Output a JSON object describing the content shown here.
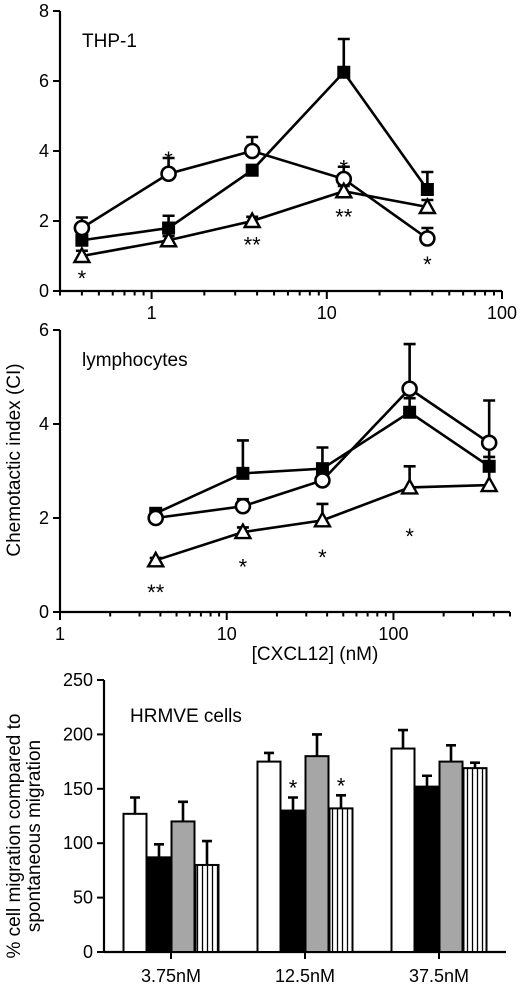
{
  "chart_data": [
    {
      "type": "line",
      "panel_label": "THP-1",
      "xscale": "log",
      "xlim": [
        0.3,
        100
      ],
      "ylim": [
        0,
        8
      ],
      "xticks": [
        "1",
        "10",
        "100"
      ],
      "yticks": [
        "0",
        "2",
        "4",
        "6",
        "8"
      ],
      "series": [
        {
          "marker": "square-filled",
          "x": [
            0.4,
            1.25,
            3.75,
            12.5,
            37.5
          ],
          "y": [
            1.45,
            1.8,
            3.45,
            6.25,
            2.9
          ],
          "err": [
            0.25,
            0.35,
            0.15,
            0.95,
            0.5
          ]
        },
        {
          "marker": "circle-open",
          "x": [
            0.4,
            1.25,
            3.75,
            12.5,
            37.5
          ],
          "y": [
            1.8,
            3.35,
            4.0,
            3.2,
            1.5
          ],
          "err": [
            0.3,
            0.45,
            0.4,
            0.35,
            0.3
          ]
        },
        {
          "marker": "triangle-open",
          "x": [
            0.4,
            1.25,
            3.75,
            12.5,
            37.5
          ],
          "y": [
            1.0,
            1.45,
            2.0,
            2.85,
            2.4
          ],
          "err": [
            0.15,
            0.12,
            0.12,
            0.15,
            0.2
          ]
        }
      ],
      "annotations": [
        {
          "text": "*",
          "x": 0.4,
          "y": 0.55
        },
        {
          "text": "*",
          "x": 1.25,
          "y": 3.95
        },
        {
          "text": "**",
          "x": 3.75,
          "y": 1.5
        },
        {
          "text": "*",
          "x": 12.5,
          "y": 3.7
        },
        {
          "text": "**",
          "x": 12.5,
          "y": 2.3
        },
        {
          "text": "*",
          "x": 37.5,
          "y": 0.95
        }
      ]
    },
    {
      "type": "line",
      "panel_label": "lymphocytes",
      "xscale": "log",
      "xlim": [
        1,
        500
      ],
      "ylim": [
        0,
        6
      ],
      "xticks": [
        "1",
        "10",
        "100"
      ],
      "yticks": [
        "0",
        "2",
        "4",
        "6"
      ],
      "series": [
        {
          "marker": "square-filled",
          "x": [
            3.75,
            12.5,
            37.5,
            125,
            375
          ],
          "y": [
            2.1,
            2.95,
            3.05,
            4.25,
            3.1
          ],
          "err": [
            0.1,
            0.7,
            0.45,
            0.3,
            0.6
          ]
        },
        {
          "marker": "circle-open",
          "x": [
            3.75,
            12.5,
            37.5,
            125,
            375
          ],
          "y": [
            2.0,
            2.25,
            2.8,
            4.75,
            3.6
          ],
          "err": [
            0.1,
            0.15,
            0.2,
            0.95,
            0.9
          ]
        },
        {
          "marker": "triangle-open",
          "x": [
            3.75,
            12.5,
            37.5,
            125,
            375
          ],
          "y": [
            1.1,
            1.7,
            1.95,
            2.65,
            2.7
          ],
          "err": [
            0.05,
            0.1,
            0.35,
            0.45,
            0.6
          ]
        }
      ],
      "annotations": [
        {
          "text": "**",
          "x": 3.75,
          "y": 0.55
        },
        {
          "text": "*",
          "x": 12.5,
          "y": 1.1
        },
        {
          "text": "*",
          "x": 37.5,
          "y": 1.3
        },
        {
          "text": "*",
          "x": 125,
          "y": 1.75
        }
      ],
      "xlabel": "[CXCL12] (nM)"
    },
    {
      "type": "bar",
      "panel_label": "HRMVE cells",
      "ylim": [
        0,
        250
      ],
      "yticks": [
        "0",
        "50",
        "100",
        "150",
        "200",
        "250"
      ],
      "categories": [
        "3.75nM",
        "12.5nM",
        "37.5nM"
      ],
      "series": [
        {
          "fill": "white",
          "values": [
            127,
            175,
            187
          ],
          "err": [
            15,
            8,
            17
          ]
        },
        {
          "fill": "black",
          "values": [
            87,
            130,
            152
          ],
          "err": [
            12,
            12,
            10
          ]
        },
        {
          "fill": "gray",
          "values": [
            120,
            180,
            175
          ],
          "err": [
            18,
            20,
            15
          ]
        },
        {
          "fill": "striped",
          "values": [
            80,
            132,
            169
          ],
          "err": [
            22,
            12,
            5
          ]
        }
      ],
      "annotations": [
        {
          "text": "*",
          "category": 1,
          "series": 1
        },
        {
          "text": "*",
          "category": 1,
          "series": 3
        }
      ],
      "ylabel_line1": "% cell migration compared to",
      "ylabel_line2": "spontaneous migration"
    }
  ],
  "shared_ylabel": "Chemotactic index (CI)",
  "colors": {
    "gray": "#a6a6a6",
    "black": "#000000",
    "white": "#ffffff"
  }
}
